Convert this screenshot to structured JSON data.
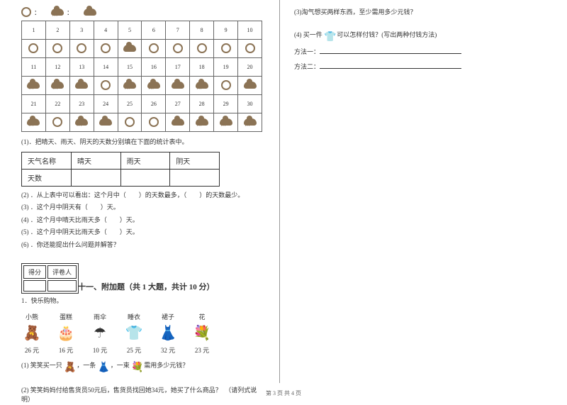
{
  "legend": {
    "colon1": "：",
    "colon2": "："
  },
  "calendar": {
    "row1_days": [
      "1",
      "2",
      "3",
      "4",
      "5",
      "6",
      "7",
      "8",
      "9",
      "10"
    ],
    "row1_weather": [
      "sun",
      "sun",
      "sun",
      "sun",
      "cloud",
      "sun",
      "sun",
      "sun",
      "sun",
      "sun"
    ],
    "row2_days": [
      "11",
      "12",
      "13",
      "14",
      "15",
      "16",
      "17",
      "18",
      "19",
      "20"
    ],
    "row2_weather": [
      "rain",
      "rain",
      "cloud",
      "sun",
      "rain",
      "rain",
      "cloud",
      "rain",
      "sun",
      "cloud"
    ],
    "row3_days": [
      "21",
      "22",
      "23",
      "24",
      "25",
      "26",
      "27",
      "28",
      "29",
      "30"
    ],
    "row3_weather": [
      "rain",
      "sun",
      "rain",
      "cloud",
      "sun",
      "sun",
      "cloud",
      "rain",
      "rain",
      "rain"
    ]
  },
  "q1_intro": "(1)．把晴天、雨天、阴天的天数分别填在下面的统计表中。",
  "stats": {
    "h_name": "天气名称",
    "h_sunny": "晴天",
    "h_rainy": "雨天",
    "h_cloudy": "阴天",
    "h_days": "天数"
  },
  "q2": "(2) ．从上表中可以看出：这个月中（　　）的天数最多，（　　）的天数最少。",
  "q3": "(3) ．这个月中阴天有（　　）天。",
  "q4": "(4) ．这个月中晴天比雨天多（　　）天。",
  "q5": "(5) ．这个月中阴天比雨天多（　　）天。",
  "q6": "(6) ．你还能提出什么问题并解答？",
  "score_labels": {
    "score": "得分",
    "grader": "评卷人"
  },
  "section11": "十一、附加题（共 1 大题，共计 10 分）",
  "shop_title": "1．快乐购物。",
  "items": {
    "bear": {
      "name": "小熊",
      "icon": "🧸",
      "price": "26 元"
    },
    "cake": {
      "name": "蛋糕",
      "icon": "🎂",
      "price": "16 元"
    },
    "umbrella": {
      "name": "雨伞",
      "icon": "☂",
      "price": "10 元"
    },
    "pajama": {
      "name": "睡衣",
      "icon": "👕",
      "price": "25 元"
    },
    "skirt": {
      "name": "裙子",
      "icon": "👗",
      "price": "32 元"
    },
    "flower": {
      "name": "花",
      "icon": "💐",
      "price": "23 元"
    }
  },
  "shop_q1_a": "(1) 笑笑买一只",
  "shop_q1_b": "，一条",
  "shop_q1_c": "，一束",
  "shop_q1_d": "需用多少元钱？",
  "shop_q2": "(2) 笑笑妈妈付给售货员50元后，售货员找回她34元，她买了什么商品？　（请列式说明）",
  "right_q3": "(3)淘气想买两样东西，至少需用多少元钱？",
  "right_q4_a": "(4) 买一件",
  "right_q4_b": "可以怎样付钱？(写出两种付钱方法)",
  "right_method1": "方法一：",
  "right_method2": "方法二：",
  "footer": "第 3 页 共 4 页"
}
